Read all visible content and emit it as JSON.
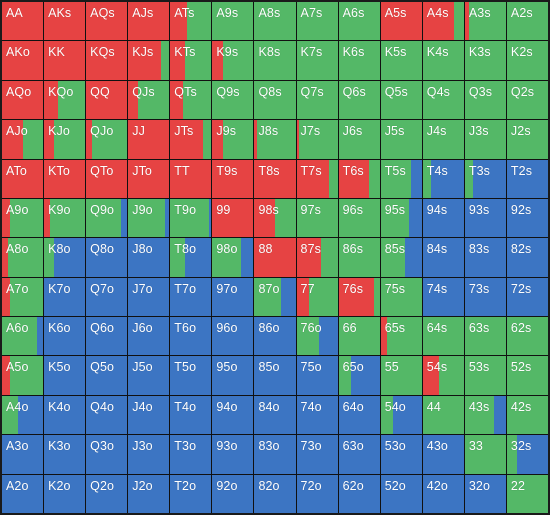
{
  "legend": {
    "raise": "#e64343",
    "call": "#54b867",
    "fold": "#3c75c3"
  },
  "hands": [
    [
      {
        "l": "AA",
        "r": 100,
        "c": 0
      },
      {
        "l": "AKs",
        "r": 100,
        "c": 0
      },
      {
        "l": "AQs",
        "r": 100,
        "c": 0
      },
      {
        "l": "AJs",
        "r": 100,
        "c": 0
      },
      {
        "l": "ATs",
        "r": 40,
        "c": 60
      },
      {
        "l": "A9s",
        "r": 0,
        "c": 100
      },
      {
        "l": "A8s",
        "r": 0,
        "c": 100
      },
      {
        "l": "A7s",
        "r": 0,
        "c": 100
      },
      {
        "l": "A6s",
        "r": 0,
        "c": 100
      },
      {
        "l": "A5s",
        "r": 100,
        "c": 0
      },
      {
        "l": "A4s",
        "r": 75,
        "c": 25
      },
      {
        "l": "A3s",
        "r": 10,
        "c": 90
      },
      {
        "l": "A2s",
        "r": 0,
        "c": 100
      }
    ],
    [
      {
        "l": "AKo",
        "r": 100,
        "c": 0
      },
      {
        "l": "KK",
        "r": 100,
        "c": 0
      },
      {
        "l": "KQs",
        "r": 100,
        "c": 0
      },
      {
        "l": "KJs",
        "r": 80,
        "c": 20
      },
      {
        "l": "KTs",
        "r": 35,
        "c": 65
      },
      {
        "l": "K9s",
        "r": 25,
        "c": 75
      },
      {
        "l": "K8s",
        "r": 0,
        "c": 100
      },
      {
        "l": "K7s",
        "r": 0,
        "c": 100
      },
      {
        "l": "K6s",
        "r": 0,
        "c": 100
      },
      {
        "l": "K5s",
        "r": 0,
        "c": 100
      },
      {
        "l": "K4s",
        "r": 0,
        "c": 100
      },
      {
        "l": "K3s",
        "r": 0,
        "c": 100
      },
      {
        "l": "K2s",
        "r": 0,
        "c": 100
      }
    ],
    [
      {
        "l": "AQo",
        "r": 100,
        "c": 0
      },
      {
        "l": "KQo",
        "r": 35,
        "c": 65
      },
      {
        "l": "QQ",
        "r": 100,
        "c": 0
      },
      {
        "l": "QJs",
        "r": 25,
        "c": 75
      },
      {
        "l": "QTs",
        "r": 30,
        "c": 70
      },
      {
        "l": "Q9s",
        "r": 0,
        "c": 100
      },
      {
        "l": "Q8s",
        "r": 0,
        "c": 100
      },
      {
        "l": "Q7s",
        "r": 0,
        "c": 100
      },
      {
        "l": "Q6s",
        "r": 0,
        "c": 100
      },
      {
        "l": "Q5s",
        "r": 0,
        "c": 100
      },
      {
        "l": "Q4s",
        "r": 0,
        "c": 100
      },
      {
        "l": "Q3s",
        "r": 0,
        "c": 100
      },
      {
        "l": "Q2s",
        "r": 0,
        "c": 100
      }
    ],
    [
      {
        "l": "AJo",
        "r": 50,
        "c": 50
      },
      {
        "l": "KJo",
        "r": 25,
        "c": 75
      },
      {
        "l": "QJo",
        "r": 15,
        "c": 85
      },
      {
        "l": "JJ",
        "r": 100,
        "c": 0
      },
      {
        "l": "JTs",
        "r": 80,
        "c": 20
      },
      {
        "l": "J9s",
        "r": 25,
        "c": 75
      },
      {
        "l": "J8s",
        "r": 5,
        "c": 95
      },
      {
        "l": "J7s",
        "r": 5,
        "c": 95
      },
      {
        "l": "J6s",
        "r": 0,
        "c": 100
      },
      {
        "l": "J5s",
        "r": 0,
        "c": 100
      },
      {
        "l": "J4s",
        "r": 0,
        "c": 100
      },
      {
        "l": "J3s",
        "r": 0,
        "c": 100
      },
      {
        "l": "J2s",
        "r": 0,
        "c": 100
      }
    ],
    [
      {
        "l": "ATo",
        "r": 100,
        "c": 0
      },
      {
        "l": "KTo",
        "r": 100,
        "c": 0
      },
      {
        "l": "QTo",
        "r": 100,
        "c": 0
      },
      {
        "l": "JTo",
        "r": 100,
        "c": 0
      },
      {
        "l": "TT",
        "r": 100,
        "c": 0
      },
      {
        "l": "T9s",
        "r": 100,
        "c": 0
      },
      {
        "l": "T8s",
        "r": 100,
        "c": 0
      },
      {
        "l": "T7s",
        "r": 80,
        "c": 20
      },
      {
        "l": "T6s",
        "r": 75,
        "c": 25
      },
      {
        "l": "T5s",
        "r": 0,
        "c": 75
      },
      {
        "l": "T4s",
        "r": 0,
        "c": 20
      },
      {
        "l": "T3s",
        "r": 0,
        "c": 20
      },
      {
        "l": "T2s",
        "r": 0,
        "c": 0
      }
    ],
    [
      {
        "l": "A9o",
        "r": 20,
        "c": 80
      },
      {
        "l": "K9o",
        "r": 15,
        "c": 85
      },
      {
        "l": "Q9o",
        "r": 0,
        "c": 85
      },
      {
        "l": "J9o",
        "r": 0,
        "c": 90
      },
      {
        "l": "T9o",
        "r": 0,
        "c": 95
      },
      {
        "l": "99",
        "r": 100,
        "c": 0
      },
      {
        "l": "98s",
        "r": 50,
        "c": 50
      },
      {
        "l": "97s",
        "r": 0,
        "c": 100
      },
      {
        "l": "96s",
        "r": 0,
        "c": 100
      },
      {
        "l": "95s",
        "r": 0,
        "c": 70
      },
      {
        "l": "94s",
        "r": 0,
        "c": 0
      },
      {
        "l": "93s",
        "r": 0,
        "c": 0
      },
      {
        "l": "92s",
        "r": 0,
        "c": 0
      }
    ],
    [
      {
        "l": "A8o",
        "r": 15,
        "c": 85
      },
      {
        "l": "K8o",
        "r": 0,
        "c": 25
      },
      {
        "l": "Q8o",
        "r": 0,
        "c": 0
      },
      {
        "l": "J8o",
        "r": 0,
        "c": 0
      },
      {
        "l": "T8o",
        "r": 0,
        "c": 35
      },
      {
        "l": "98o",
        "r": 0,
        "c": 70
      },
      {
        "l": "88",
        "r": 100,
        "c": 0
      },
      {
        "l": "87s",
        "r": 60,
        "c": 40
      },
      {
        "l": "86s",
        "r": 0,
        "c": 100
      },
      {
        "l": "85s",
        "r": 0,
        "c": 60
      },
      {
        "l": "84s",
        "r": 0,
        "c": 0
      },
      {
        "l": "83s",
        "r": 0,
        "c": 0
      },
      {
        "l": "82s",
        "r": 0,
        "c": 0
      }
    ],
    [
      {
        "l": "A7o",
        "r": 20,
        "c": 80
      },
      {
        "l": "K7o",
        "r": 0,
        "c": 0
      },
      {
        "l": "Q7o",
        "r": 0,
        "c": 0
      },
      {
        "l": "J7o",
        "r": 0,
        "c": 0
      },
      {
        "l": "T7o",
        "r": 0,
        "c": 0
      },
      {
        "l": "97o",
        "r": 0,
        "c": 0
      },
      {
        "l": "87o",
        "r": 0,
        "c": 65
      },
      {
        "l": "77",
        "r": 30,
        "c": 70
      },
      {
        "l": "76s",
        "r": 85,
        "c": 15
      },
      {
        "l": "75s",
        "r": 0,
        "c": 100
      },
      {
        "l": "74s",
        "r": 0,
        "c": 0
      },
      {
        "l": "73s",
        "r": 0,
        "c": 0
      },
      {
        "l": "72s",
        "r": 0,
        "c": 0
      }
    ],
    [
      {
        "l": "A6o",
        "r": 0,
        "c": 85
      },
      {
        "l": "K6o",
        "r": 0,
        "c": 0
      },
      {
        "l": "Q6o",
        "r": 0,
        "c": 0
      },
      {
        "l": "J6o",
        "r": 0,
        "c": 0
      },
      {
        "l": "T6o",
        "r": 0,
        "c": 0
      },
      {
        "l": "96o",
        "r": 0,
        "c": 0
      },
      {
        "l": "86o",
        "r": 0,
        "c": 0
      },
      {
        "l": "76o",
        "r": 0,
        "c": 55
      },
      {
        "l": "66",
        "r": 0,
        "c": 100
      },
      {
        "l": "65s",
        "r": 15,
        "c": 85
      },
      {
        "l": "64s",
        "r": 0,
        "c": 100
      },
      {
        "l": "63s",
        "r": 0,
        "c": 100
      },
      {
        "l": "62s",
        "r": 0,
        "c": 100
      }
    ],
    [
      {
        "l": "A5o",
        "r": 20,
        "c": 80
      },
      {
        "l": "K5o",
        "r": 0,
        "c": 0
      },
      {
        "l": "Q5o",
        "r": 0,
        "c": 0
      },
      {
        "l": "J5o",
        "r": 0,
        "c": 0
      },
      {
        "l": "T5o",
        "r": 0,
        "c": 0
      },
      {
        "l": "95o",
        "r": 0,
        "c": 0
      },
      {
        "l": "85o",
        "r": 0,
        "c": 0
      },
      {
        "l": "75o",
        "r": 0,
        "c": 0
      },
      {
        "l": "65o",
        "r": 0,
        "c": 30
      },
      {
        "l": "55",
        "r": 0,
        "c": 100
      },
      {
        "l": "54s",
        "r": 40,
        "c": 60
      },
      {
        "l": "53s",
        "r": 0,
        "c": 100
      },
      {
        "l": "52s",
        "r": 0,
        "c": 100
      }
    ],
    [
      {
        "l": "A4o",
        "r": 0,
        "c": 40
      },
      {
        "l": "K4o",
        "r": 0,
        "c": 0
      },
      {
        "l": "Q4o",
        "r": 0,
        "c": 0
      },
      {
        "l": "J4o",
        "r": 0,
        "c": 0
      },
      {
        "l": "T4o",
        "r": 0,
        "c": 0
      },
      {
        "l": "94o",
        "r": 0,
        "c": 0
      },
      {
        "l": "84o",
        "r": 0,
        "c": 0
      },
      {
        "l": "74o",
        "r": 0,
        "c": 0
      },
      {
        "l": "64o",
        "r": 0,
        "c": 0
      },
      {
        "l": "54o",
        "r": 0,
        "c": 30
      },
      {
        "l": "44",
        "r": 0,
        "c": 100
      },
      {
        "l": "43s",
        "r": 0,
        "c": 70
      },
      {
        "l": "42s",
        "r": 0,
        "c": 100
      }
    ],
    [
      {
        "l": "A3o",
        "r": 0,
        "c": 0
      },
      {
        "l": "K3o",
        "r": 0,
        "c": 0
      },
      {
        "l": "Q3o",
        "r": 0,
        "c": 0
      },
      {
        "l": "J3o",
        "r": 0,
        "c": 0
      },
      {
        "l": "T3o",
        "r": 0,
        "c": 0
      },
      {
        "l": "93o",
        "r": 0,
        "c": 0
      },
      {
        "l": "83o",
        "r": 0,
        "c": 0
      },
      {
        "l": "73o",
        "r": 0,
        "c": 0
      },
      {
        "l": "63o",
        "r": 0,
        "c": 0
      },
      {
        "l": "53o",
        "r": 0,
        "c": 0
      },
      {
        "l": "43o",
        "r": 0,
        "c": 0
      },
      {
        "l": "33",
        "r": 0,
        "c": 100
      },
      {
        "l": "32s",
        "r": 0,
        "c": 25
      }
    ],
    [
      {
        "l": "A2o",
        "r": 0,
        "c": 0
      },
      {
        "l": "K2o",
        "r": 0,
        "c": 0
      },
      {
        "l": "Q2o",
        "r": 0,
        "c": 0
      },
      {
        "l": "J2o",
        "r": 0,
        "c": 0
      },
      {
        "l": "T2o",
        "r": 0,
        "c": 0
      },
      {
        "l": "92o",
        "r": 0,
        "c": 0
      },
      {
        "l": "82o",
        "r": 0,
        "c": 0
      },
      {
        "l": "72o",
        "r": 0,
        "c": 0
      },
      {
        "l": "62o",
        "r": 0,
        "c": 0
      },
      {
        "l": "52o",
        "r": 0,
        "c": 0
      },
      {
        "l": "42o",
        "r": 0,
        "c": 0
      },
      {
        "l": "32o",
        "r": 0,
        "c": 0
      },
      {
        "l": "22",
        "r": 0,
        "c": 100
      }
    ]
  ]
}
